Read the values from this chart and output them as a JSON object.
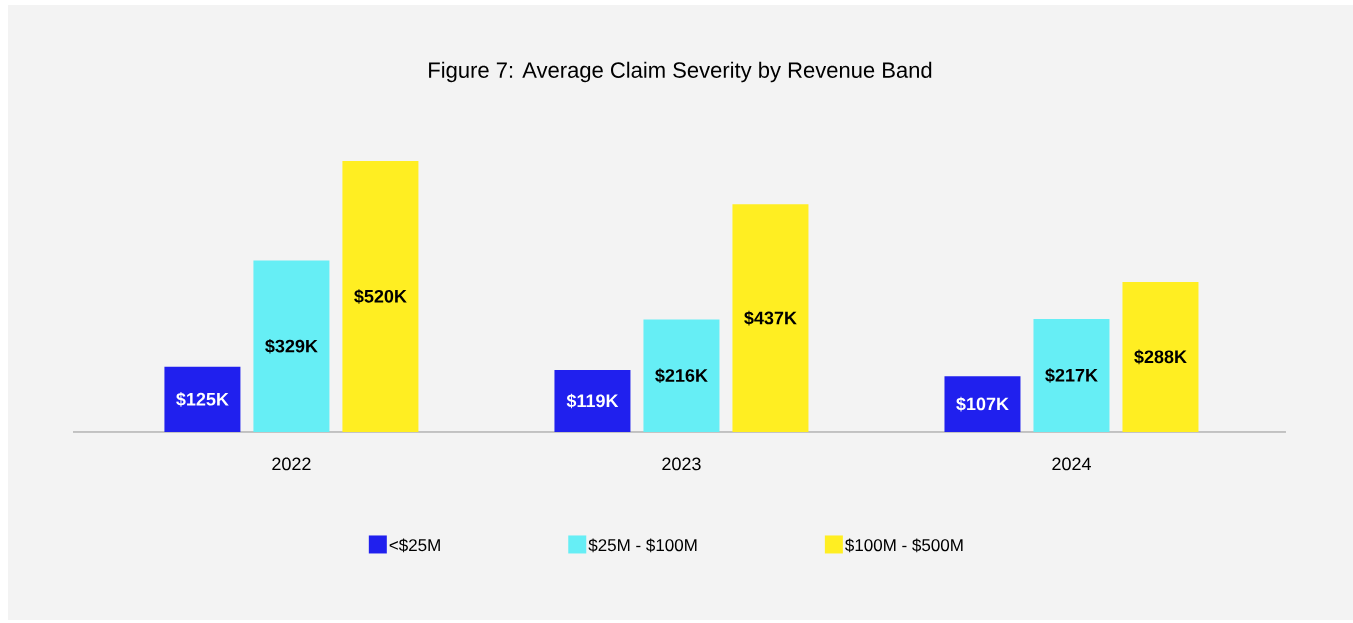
{
  "chart_data": {
    "type": "bar",
    "title": "Figure 7: Average Claim Severity by Revenue Band",
    "categories": [
      "2022",
      "2023",
      "2024"
    ],
    "series": [
      {
        "name": "<$25M",
        "color": "#2020ee",
        "values": [
          125,
          119,
          107
        ],
        "value_labels": [
          "$125K",
          "$119K",
          "$107K"
        ]
      },
      {
        "name": "$25M - $100M",
        "color": "#66eef5",
        "values": [
          329,
          216,
          217
        ],
        "value_labels": [
          "$329K",
          "$216K",
          "$217K"
        ]
      },
      {
        "name": "$100M - $500M",
        "color": "#ffee22",
        "values": [
          520,
          437,
          288
        ],
        "value_labels": [
          "$520K",
          "$437K",
          "$288K"
        ]
      }
    ],
    "legend": "bottom",
    "tick_labels": "x"
  }
}
